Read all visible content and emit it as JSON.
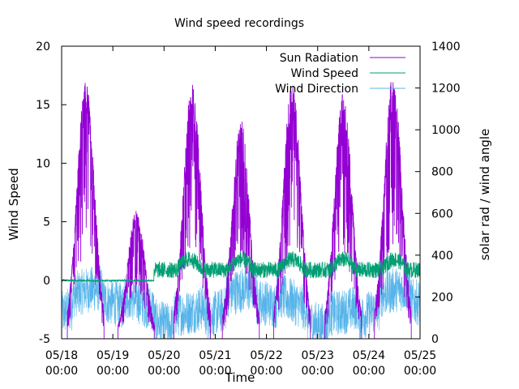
{
  "chart_data": {
    "type": "line",
    "title": "Wind speed recordings",
    "xlabel": "Time",
    "ylabel": "Wind Speed",
    "y2label": "solar rad / wind angle",
    "xlim": [
      0,
      7
    ],
    "ylim": [
      -5,
      20
    ],
    "y2lim": [
      0,
      1400
    ],
    "x_tick_labels": [
      {
        "line1": "05/18",
        "line2": "00:00"
      },
      {
        "line1": "05/19",
        "line2": "00:00"
      },
      {
        "line1": "05/20",
        "line2": "00:00"
      },
      {
        "line1": "05/21",
        "line2": "00:00"
      },
      {
        "line1": "05/22",
        "line2": "00:00"
      },
      {
        "line1": "05/23",
        "line2": "00:00"
      },
      {
        "line1": "05/24",
        "line2": "00:00"
      },
      {
        "line1": "05/25",
        "line2": "00:00"
      }
    ],
    "y_ticks": [
      -5,
      0,
      5,
      10,
      15,
      20
    ],
    "y2_ticks": [
      0,
      200,
      400,
      600,
      800,
      1000,
      1200,
      1400
    ],
    "legend_position": "top-right",
    "series": [
      {
        "name": "Sun Radiation",
        "axis": "y2",
        "color": "#9400d3",
        "daily_peaks": [
          1230,
          620,
          1230,
          1050,
          1230,
          1180,
          1270
        ],
        "peak_times": [
          0.47,
          1.46,
          2.55,
          3.5,
          4.5,
          5.5,
          6.47
        ]
      },
      {
        "name": "Wind Speed",
        "axis": "y1",
        "color": "#009e73",
        "range": [
          -0.2,
          3.7
        ]
      },
      {
        "name": "Wind Direction",
        "axis": "y2",
        "color": "#56b4e9",
        "range": [
          0,
          350
        ]
      }
    ]
  }
}
